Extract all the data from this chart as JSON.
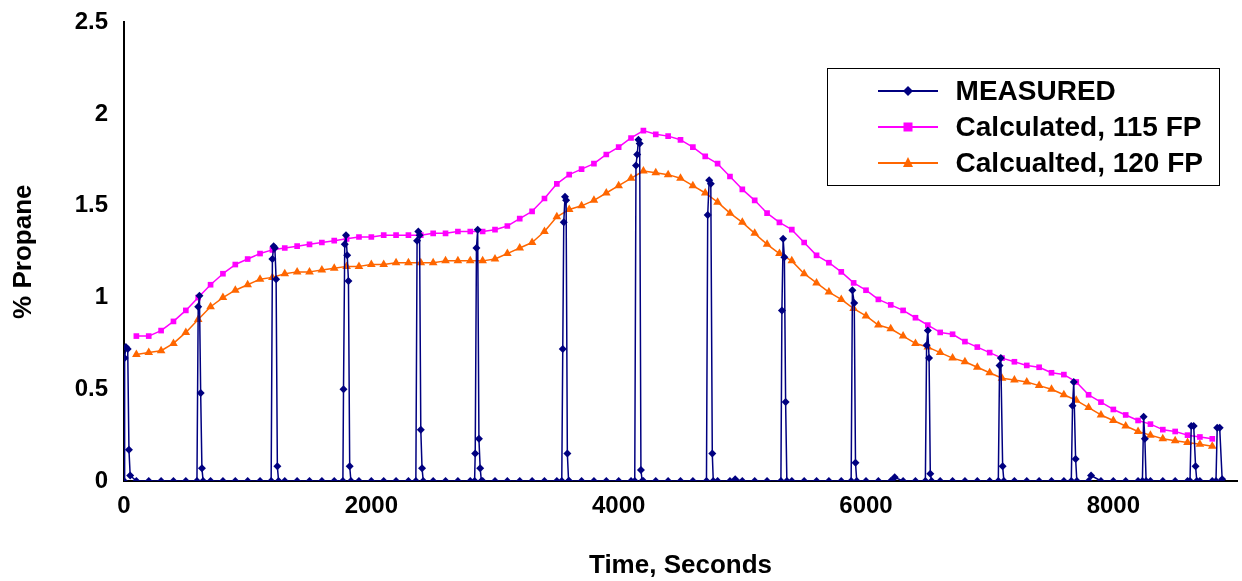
{
  "chart_data": {
    "type": "line",
    "xlabel": "Time, Seconds",
    "ylabel": "% Propane",
    "xlim": [
      0,
      9000
    ],
    "xticks": [
      0,
      2000,
      4000,
      6000,
      8000
    ],
    "ylim": [
      0,
      2.5
    ],
    "yticks": [
      0,
      0.5,
      1,
      1.5,
      2,
      2.5
    ],
    "grid": false,
    "legend": "top right",
    "line_style": "solid",
    "series": [
      {
        "name": "MEASURED",
        "color": "#000080",
        "marker": "diamond",
        "x": [
          0,
          5,
          15,
          30,
          40,
          50,
          100,
          200,
          300,
          400,
          500,
          590,
          600,
          610,
          620,
          630,
          640,
          700,
          800,
          900,
          1000,
          1100,
          1190,
          1200,
          1210,
          1220,
          1230,
          1240,
          1250,
          1300,
          1400,
          1500,
          1600,
          1700,
          1770,
          1775,
          1785,
          1795,
          1805,
          1815,
          1825,
          1835,
          1900,
          2000,
          2100,
          2200,
          2300,
          2360,
          2370,
          2380,
          2390,
          2400,
          2410,
          2420,
          2500,
          2600,
          2700,
          2800,
          2835,
          2840,
          2850,
          2860,
          2870,
          2880,
          2890,
          2900,
          3000,
          3100,
          3200,
          3300,
          3400,
          3500,
          3540,
          3548,
          3556,
          3566,
          3575,
          3585,
          3595,
          3600,
          3700,
          3800,
          3900,
          4000,
          4100,
          4130,
          4140,
          4150,
          4160,
          4170,
          4180,
          4190,
          4200,
          4300,
          4400,
          4500,
          4600,
          4710,
          4720,
          4732,
          4745,
          4757,
          4765,
          4800,
          4900,
          4942,
          5000,
          5100,
          5200,
          5312,
          5320,
          5330,
          5340,
          5350,
          5360,
          5400,
          5500,
          5600,
          5700,
          5800,
          5880,
          5890,
          5905,
          5915,
          5925,
          6000,
          6100,
          6200,
          6232,
          6300,
          6400,
          6480,
          6490,
          6500,
          6510,
          6520,
          6530,
          6600,
          6700,
          6800,
          6900,
          7000,
          7070,
          7080,
          7090,
          7105,
          7115,
          7200,
          7300,
          7400,
          7500,
          7600,
          7660,
          7670,
          7680,
          7695,
          7705,
          7800,
          7820,
          7900,
          8000,
          8100,
          8200,
          8235,
          8245,
          8255,
          8265,
          8300,
          8400,
          8500,
          8600,
          8620,
          8630,
          8650,
          8665,
          8675,
          8700,
          8800,
          8830,
          8840,
          8860,
          8880
        ],
        "values": [
          0,
          0.67,
          0.73,
          0.72,
          0.17,
          0.03,
          0,
          0,
          0,
          0,
          0,
          0,
          0.95,
          1.01,
          0.48,
          0.07,
          0,
          0,
          0,
          0,
          0,
          0,
          0,
          1.21,
          1.28,
          1.27,
          1.1,
          0.08,
          0,
          0,
          0,
          0,
          0,
          0,
          0,
          0.5,
          1.29,
          1.34,
          1.23,
          1.09,
          0.08,
          0,
          0,
          0,
          0,
          0,
          0,
          0,
          1.31,
          1.36,
          1.34,
          0.28,
          0.07,
          0,
          0,
          0,
          0,
          0,
          0,
          0.15,
          1.27,
          1.37,
          0.23,
          0.07,
          0,
          0,
          0,
          0,
          0,
          0,
          0,
          0,
          0,
          0.72,
          1.41,
          1.55,
          1.53,
          0.15,
          0,
          0,
          0,
          0,
          0,
          0,
          0,
          0,
          1.72,
          1.78,
          1.86,
          1.84,
          0.06,
          0,
          0,
          0,
          0,
          0,
          0,
          0,
          1.45,
          1.64,
          1.62,
          0.15,
          0,
          0,
          0,
          0.01,
          0,
          0,
          0,
          0,
          0.93,
          1.32,
          1.22,
          0.43,
          0,
          0,
          0,
          0,
          0,
          0,
          0,
          1.04,
          0.97,
          0.1,
          0,
          0,
          0,
          0,
          0.02,
          0,
          0,
          0,
          0.74,
          0.82,
          0.67,
          0.04,
          0,
          0,
          0,
          0,
          0,
          0,
          0,
          0.63,
          0.67,
          0.08,
          0,
          0,
          0,
          0,
          0,
          0,
          0,
          0.41,
          0.54,
          0.12,
          0,
          0,
          0.03,
          0,
          0,
          0,
          0,
          0,
          0.35,
          0.23,
          0,
          0,
          0,
          0,
          0,
          0,
          0.3,
          0.3,
          0.08,
          0,
          0,
          0,
          0,
          0.29,
          0.29,
          0.01
        ]
      },
      {
        "name": "Calculated, 115 FP",
        "color": "#ff00ff",
        "marker": "square",
        "x": [
          100,
          200,
          300,
          400,
          500,
          600,
          700,
          800,
          900,
          1000,
          1100,
          1200,
          1300,
          1400,
          1500,
          1600,
          1700,
          1800,
          1900,
          2000,
          2100,
          2200,
          2300,
          2400,
          2500,
          2600,
          2700,
          2800,
          2900,
          3000,
          3100,
          3200,
          3300,
          3400,
          3500,
          3600,
          3700,
          3800,
          3900,
          4000,
          4100,
          4200,
          4300,
          4400,
          4500,
          4600,
          4700,
          4800,
          4900,
          5000,
          5100,
          5200,
          5300,
          5400,
          5500,
          5600,
          5700,
          5800,
          5900,
          6000,
          6100,
          6200,
          6300,
          6400,
          6500,
          6600,
          6700,
          6800,
          6900,
          7000,
          7100,
          7200,
          7300,
          7400,
          7500,
          7600,
          7700,
          7800,
          7900,
          8000,
          8100,
          8200,
          8300,
          8400,
          8500,
          8600,
          8700,
          8800
        ],
        "values": [
          0.79,
          0.79,
          0.82,
          0.87,
          0.93,
          1.0,
          1.07,
          1.13,
          1.18,
          1.21,
          1.24,
          1.26,
          1.27,
          1.28,
          1.29,
          1.3,
          1.31,
          1.32,
          1.33,
          1.33,
          1.34,
          1.34,
          1.34,
          1.34,
          1.35,
          1.35,
          1.36,
          1.36,
          1.36,
          1.37,
          1.39,
          1.43,
          1.47,
          1.54,
          1.62,
          1.67,
          1.7,
          1.73,
          1.78,
          1.82,
          1.87,
          1.91,
          1.89,
          1.88,
          1.86,
          1.82,
          1.77,
          1.73,
          1.66,
          1.59,
          1.53,
          1.46,
          1.41,
          1.37,
          1.3,
          1.23,
          1.19,
          1.14,
          1.08,
          1.04,
          0.99,
          0.96,
          0.93,
          0.89,
          0.85,
          0.81,
          0.8,
          0.76,
          0.73,
          0.7,
          0.67,
          0.65,
          0.63,
          0.62,
          0.59,
          0.58,
          0.54,
          0.47,
          0.43,
          0.39,
          0.36,
          0.33,
          0.31,
          0.28,
          0.27,
          0.25,
          0.24,
          0.23
        ]
      },
      {
        "name": "Calcualted, 120 FP",
        "color": "#ff6600",
        "marker": "triangle",
        "x": [
          100,
          200,
          300,
          400,
          500,
          600,
          700,
          800,
          900,
          1000,
          1100,
          1200,
          1300,
          1400,
          1500,
          1600,
          1700,
          1800,
          1900,
          2000,
          2100,
          2200,
          2300,
          2400,
          2500,
          2600,
          2700,
          2800,
          2900,
          3000,
          3100,
          3200,
          3300,
          3400,
          3500,
          3600,
          3700,
          3800,
          3900,
          4000,
          4100,
          4200,
          4300,
          4400,
          4500,
          4600,
          4700,
          4800,
          4900,
          5000,
          5100,
          5200,
          5300,
          5400,
          5500,
          5600,
          5700,
          5800,
          5900,
          6000,
          6100,
          6200,
          6300,
          6400,
          6500,
          6600,
          6700,
          6800,
          6900,
          7000,
          7100,
          7200,
          7300,
          7400,
          7500,
          7600,
          7700,
          7800,
          7900,
          8000,
          8100,
          8200,
          8300,
          8400,
          8500,
          8600,
          8700,
          8800
        ],
        "values": [
          0.69,
          0.7,
          0.71,
          0.75,
          0.81,
          0.88,
          0.95,
          1.0,
          1.04,
          1.07,
          1.1,
          1.11,
          1.13,
          1.14,
          1.14,
          1.15,
          1.16,
          1.17,
          1.17,
          1.18,
          1.18,
          1.19,
          1.19,
          1.19,
          1.19,
          1.2,
          1.2,
          1.2,
          1.2,
          1.21,
          1.24,
          1.27,
          1.3,
          1.36,
          1.44,
          1.48,
          1.5,
          1.53,
          1.57,
          1.61,
          1.65,
          1.69,
          1.68,
          1.67,
          1.65,
          1.61,
          1.57,
          1.52,
          1.46,
          1.41,
          1.35,
          1.29,
          1.24,
          1.2,
          1.13,
          1.08,
          1.03,
          0.99,
          0.94,
          0.9,
          0.85,
          0.83,
          0.79,
          0.75,
          0.73,
          0.7,
          0.67,
          0.65,
          0.62,
          0.59,
          0.56,
          0.55,
          0.54,
          0.52,
          0.5,
          0.47,
          0.44,
          0.4,
          0.36,
          0.33,
          0.3,
          0.27,
          0.25,
          0.23,
          0.22,
          0.21,
          0.2,
          0.19
        ]
      }
    ]
  }
}
